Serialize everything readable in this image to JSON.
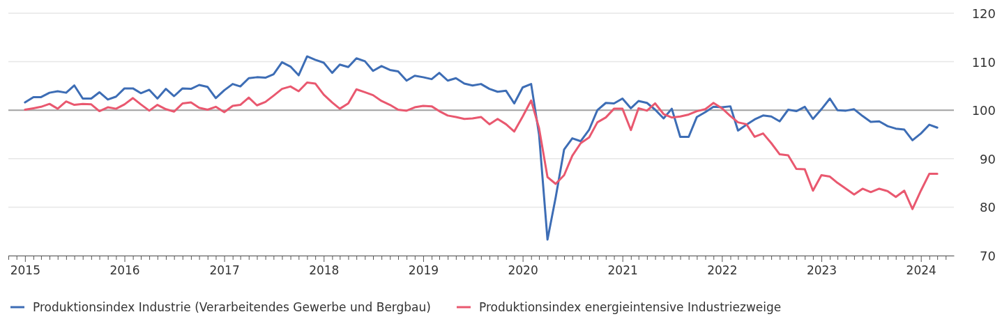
{
  "chart_data": {
    "type": "line",
    "x": [
      "2015-01",
      "2015-02",
      "2015-03",
      "2015-04",
      "2015-05",
      "2015-06",
      "2015-07",
      "2015-08",
      "2015-09",
      "2015-10",
      "2015-11",
      "2015-12",
      "2016-01",
      "2016-02",
      "2016-03",
      "2016-04",
      "2016-05",
      "2016-06",
      "2016-07",
      "2016-08",
      "2016-09",
      "2016-10",
      "2016-11",
      "2016-12",
      "2017-01",
      "2017-02",
      "2017-03",
      "2017-04",
      "2017-05",
      "2017-06",
      "2017-07",
      "2017-08",
      "2017-09",
      "2017-10",
      "2017-11",
      "2017-12",
      "2018-01",
      "2018-02",
      "2018-03",
      "2018-04",
      "2018-05",
      "2018-06",
      "2018-07",
      "2018-08",
      "2018-09",
      "2018-10",
      "2018-11",
      "2018-12",
      "2019-01",
      "2019-02",
      "2019-03",
      "2019-04",
      "2019-05",
      "2019-06",
      "2019-07",
      "2019-08",
      "2019-09",
      "2019-10",
      "2019-11",
      "2019-12",
      "2020-01",
      "2020-02",
      "2020-03",
      "2020-04",
      "2020-05",
      "2020-06",
      "2020-07",
      "2020-08",
      "2020-09",
      "2020-10",
      "2020-11",
      "2020-12",
      "2021-01",
      "2021-02",
      "2021-03",
      "2021-04",
      "2021-05",
      "2021-06",
      "2021-07",
      "2021-08",
      "2021-09",
      "2021-10",
      "2021-11",
      "2021-12",
      "2022-01",
      "2022-02",
      "2022-03",
      "2022-04",
      "2022-05",
      "2022-06",
      "2022-07",
      "2022-08",
      "2022-09",
      "2022-10",
      "2022-11",
      "2022-12",
      "2023-01",
      "2023-02",
      "2023-03",
      "2023-04",
      "2023-05",
      "2023-06",
      "2023-07",
      "2023-08",
      "2023-09",
      "2023-10",
      "2023-11",
      "2023-12",
      "2024-01",
      "2024-02",
      "2024-03"
    ],
    "series": [
      {
        "name": "Produktionsindex Industrie (Verarbeitendes Gewerbe und Bergbau)",
        "color": "#3d6db5",
        "values": [
          101.6,
          102.7,
          102.7,
          103.6,
          103.9,
          103.6,
          105.1,
          102.4,
          102.4,
          103.7,
          102.2,
          102.8,
          104.5,
          104.5,
          103.5,
          104.2,
          102.4,
          104.4,
          102.9,
          104.5,
          104.4,
          105.2,
          104.8,
          102.5,
          104.1,
          105.4,
          104.9,
          106.6,
          106.8,
          106.7,
          107.4,
          109.9,
          109.0,
          107.2,
          111.1,
          110.4,
          109.8,
          107.7,
          109.4,
          108.9,
          110.7,
          110.1,
          108.1,
          109.1,
          108.3,
          108.0,
          106.1,
          107.1,
          106.8,
          106.4,
          107.7,
          106.1,
          106.6,
          105.5,
          105.1,
          105.4,
          104.4,
          103.8,
          104.0,
          101.4,
          104.7,
          105.4,
          95.0,
          73.3,
          82.0,
          91.9,
          94.2,
          93.6,
          96.0,
          100.0,
          101.5,
          101.4,
          102.4,
          100.4,
          101.9,
          101.5,
          100.1,
          98.3,
          100.3,
          94.5,
          94.5,
          98.6,
          99.6,
          100.7,
          100.6,
          100.8,
          95.8,
          97.0,
          98.1,
          98.9,
          98.7,
          97.7,
          100.1,
          99.8,
          100.7,
          98.2,
          100.2,
          102.4,
          100.0,
          99.9,
          100.2,
          98.8,
          97.6,
          97.7,
          96.7,
          96.2,
          96.0,
          93.8,
          95.2,
          97.0,
          96.4
        ]
      },
      {
        "name": "Produktionsindex energieintensive Industriezweige",
        "color": "#e9586f",
        "values": [
          100.1,
          100.4,
          100.7,
          101.3,
          100.3,
          101.8,
          101.1,
          101.3,
          101.2,
          99.8,
          100.6,
          100.3,
          101.2,
          102.5,
          101.2,
          99.9,
          101.1,
          100.2,
          99.7,
          101.4,
          101.6,
          100.5,
          100.1,
          100.7,
          99.6,
          100.9,
          101.1,
          102.6,
          101.0,
          101.7,
          103.0,
          104.4,
          104.9,
          103.9,
          105.7,
          105.5,
          103.2,
          101.6,
          100.3,
          101.4,
          104.3,
          103.7,
          103.1,
          101.9,
          101.1,
          100.1,
          99.9,
          100.6,
          100.9,
          100.8,
          99.8,
          98.9,
          98.6,
          98.2,
          98.3,
          98.6,
          97.1,
          98.2,
          97.1,
          95.6,
          98.7,
          102.0,
          96.3,
          86.2,
          84.8,
          86.6,
          90.6,
          93.2,
          94.4,
          97.5,
          98.5,
          100.3,
          100.3,
          95.9,
          100.4,
          99.9,
          101.4,
          99.2,
          98.5,
          98.7,
          99.1,
          99.8,
          100.2,
          101.5,
          100.4,
          98.8,
          97.5,
          97.1,
          94.5,
          95.2,
          93.2,
          90.9,
          90.7,
          87.9,
          87.8,
          83.4,
          86.6,
          86.3,
          85.0,
          83.8,
          82.6,
          83.8,
          83.1,
          83.8,
          83.3,
          82.1,
          83.4,
          79.6,
          83.4,
          86.9,
          86.9
        ]
      }
    ],
    "xlim": [
      "2014-11",
      "2024-05"
    ],
    "xticks": [
      {
        "value": "2014-11",
        "label": null
      },
      {
        "value": "2014-12",
        "label": null
      },
      "2015",
      {
        "value": "2015-02",
        "label": null
      },
      {
        "value": "2015-03",
        "label": null
      },
      {
        "value": "2015-04",
        "label": null
      },
      {
        "value": "2015-05",
        "label": null
      },
      {
        "value": "2015-06",
        "label": null
      },
      {
        "value": "2015-07",
        "label": null
      },
      {
        "value": "2015-08",
        "label": null
      },
      {
        "value": "2015-09",
        "label": null
      },
      {
        "value": "2015-10",
        "label": null
      },
      {
        "value": "2015-11",
        "label": null
      },
      {
        "value": "2015-12",
        "label": null
      },
      "2016",
      {
        "value": "2016-02",
        "label": null
      },
      {
        "value": "2016-03",
        "label": null
      },
      {
        "value": "2016-04",
        "label": null
      },
      {
        "value": "2016-05",
        "label": null
      },
      {
        "value": "2016-06",
        "label": null
      },
      {
        "value": "2016-07",
        "label": null
      },
      {
        "value": "2016-08",
        "label": null
      },
      {
        "value": "2016-09",
        "label": null
      },
      {
        "value": "2016-10",
        "label": null
      },
      {
        "value": "2016-11",
        "label": null
      },
      {
        "value": "2016-12",
        "label": null
      },
      "2017",
      {
        "value": "2017-02",
        "label": null
      },
      {
        "value": "2017-03",
        "label": null
      },
      {
        "value": "2017-04",
        "label": null
      },
      {
        "value": "2017-05",
        "label": null
      },
      {
        "value": "2017-06",
        "label": null
      },
      {
        "value": "2017-07",
        "label": null
      },
      {
        "value": "2017-08",
        "label": null
      },
      {
        "value": "2017-09",
        "label": null
      },
      {
        "value": "2017-10",
        "label": null
      },
      {
        "value": "2017-11",
        "label": null
      },
      {
        "value": "2017-12",
        "label": null
      },
      "2018",
      {
        "value": "2018-02",
        "label": null
      },
      {
        "value": "2018-03",
        "label": null
      },
      {
        "value": "2018-04",
        "label": null
      },
      {
        "value": "2018-05",
        "label": null
      },
      {
        "value": "2018-06",
        "label": null
      },
      {
        "value": "2018-07",
        "label": null
      },
      {
        "value": "2018-08",
        "label": null
      },
      {
        "value": "2018-09",
        "label": null
      },
      {
        "value": "2018-10",
        "label": null
      },
      {
        "value": "2018-11",
        "label": null
      },
      {
        "value": "2018-12",
        "label": null
      },
      "2019",
      {
        "value": "2019-02",
        "label": null
      },
      {
        "value": "2019-03",
        "label": null
      },
      {
        "value": "2019-04",
        "label": null
      },
      {
        "value": "2019-05",
        "label": null
      },
      {
        "value": "2019-06",
        "label": null
      },
      {
        "value": "2019-07",
        "label": null
      },
      {
        "value": "2019-08",
        "label": null
      },
      {
        "value": "2019-09",
        "label": null
      },
      {
        "value": "2019-10",
        "label": null
      },
      {
        "value": "2019-11",
        "label": null
      },
      {
        "value": "2019-12",
        "label": null
      },
      "2020",
      {
        "value": "2020-02",
        "label": null
      },
      {
        "value": "2020-03",
        "label": null
      },
      {
        "value": "2020-04",
        "label": null
      },
      {
        "value": "2020-05",
        "label": null
      },
      {
        "value": "2020-06",
        "label": null
      },
      {
        "value": "2020-07",
        "label": null
      },
      {
        "value": "2020-08",
        "label": null
      },
      {
        "value": "2020-09",
        "label": null
      },
      {
        "value": "2020-10",
        "label": null
      },
      {
        "value": "2020-11",
        "label": null
      },
      {
        "value": "2020-12",
        "label": null
      },
      "2021",
      {
        "value": "2021-02",
        "label": null
      },
      {
        "value": "2021-03",
        "label": null
      },
      {
        "value": "2021-04",
        "label": null
      },
      {
        "value": "2021-05",
        "label": null
      },
      {
        "value": "2021-06",
        "label": null
      },
      {
        "value": "2021-07",
        "label": null
      },
      {
        "value": "2021-08",
        "label": null
      },
      {
        "value": "2021-09",
        "label": null
      },
      {
        "value": "2021-10",
        "label": null
      },
      {
        "value": "2021-11",
        "label": null
      },
      {
        "value": "2021-12",
        "label": null
      },
      "2022",
      {
        "value": "2022-02",
        "label": null
      },
      {
        "value": "2022-03",
        "label": null
      },
      {
        "value": "2022-04",
        "label": null
      },
      {
        "value": "2022-05",
        "label": null
      },
      {
        "value": "2022-06",
        "label": null
      },
      {
        "value": "2022-07",
        "label": null
      },
      {
        "value": "2022-08",
        "label": null
      },
      {
        "value": "2022-09",
        "label": null
      },
      {
        "value": "2022-10",
        "label": null
      },
      {
        "value": "2022-11",
        "label": null
      },
      {
        "value": "2022-12",
        "label": null
      },
      "2023",
      {
        "value": "2023-02",
        "label": null
      },
      {
        "value": "2023-03",
        "label": null
      },
      {
        "value": "2023-04",
        "label": null
      },
      {
        "value": "2023-05",
        "label": null
      },
      {
        "value": "2023-06",
        "label": null
      },
      {
        "value": "2023-07",
        "label": null
      },
      {
        "value": "2023-08",
        "label": null
      },
      {
        "value": "2023-09",
        "label": null
      },
      {
        "value": "2023-10",
        "label": null
      },
      {
        "value": "2023-11",
        "label": null
      },
      {
        "value": "2023-12",
        "label": null
      },
      "2024",
      {
        "value": "2024-02",
        "label": null
      },
      {
        "value": "2024-03",
        "label": null
      },
      {
        "value": "2024-04",
        "label": null
      }
    ],
    "ylim": [
      70,
      120
    ],
    "yticks": [
      70,
      80,
      90,
      100,
      110,
      120
    ],
    "grid": "y",
    "legend": "bottom",
    "line_style": "solid",
    "ref_lines": [
      {
        "axis": "y",
        "value": 100,
        "color": "#a3a3a3"
      }
    ]
  }
}
